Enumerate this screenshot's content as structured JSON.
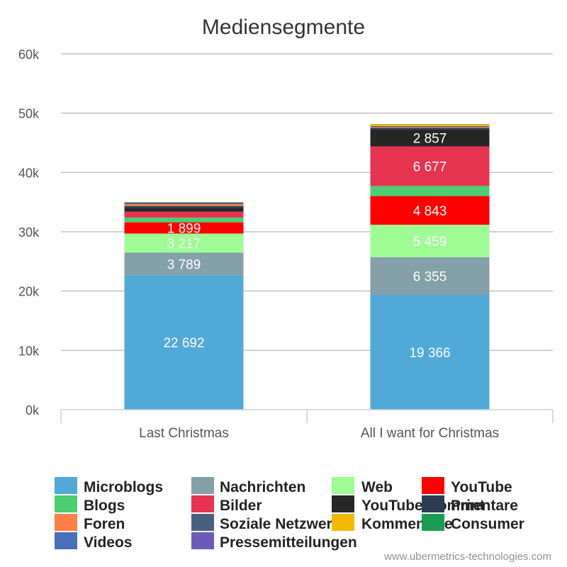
{
  "chart_data": {
    "type": "bar",
    "stacked": true,
    "title": "Mediensegmente",
    "categories": [
      "Last Christmas",
      "All I want for Christmas"
    ],
    "ylim": [
      0,
      60000
    ],
    "yticks": [
      0,
      10000,
      20000,
      30000,
      40000,
      50000,
      60000
    ],
    "ytick_labels": [
      "0k",
      "10k",
      "20k",
      "30k",
      "40k",
      "50k",
      "60k"
    ],
    "grid": true,
    "legend_position": "bottom",
    "series": [
      {
        "name": "Microblogs",
        "color": "#50a9d7",
        "values": [
          22692,
          19366
        ],
        "labels": [
          "22 692",
          "19 366"
        ]
      },
      {
        "name": "Nachrichten",
        "color": "#84a0a8",
        "values": [
          3789,
          6355
        ],
        "labels": [
          "3 789",
          "6 355"
        ]
      },
      {
        "name": "Web",
        "color": "#9efc95",
        "values": [
          3217,
          5459
        ],
        "labels": [
          "3 217",
          "5 459"
        ]
      },
      {
        "name": "YouTube",
        "color": "#ff0000",
        "values": [
          1899,
          4843
        ],
        "labels": [
          "1 899",
          "4 843"
        ]
      },
      {
        "name": "Blogs",
        "color": "#4cce72",
        "values": [
          800,
          1700
        ],
        "labels": [
          "",
          ""
        ]
      },
      {
        "name": "Bilder",
        "color": "#e6334f",
        "values": [
          1000,
          6677
        ],
        "labels": [
          "",
          "6 677"
        ]
      },
      {
        "name": "YouTube Kommentare",
        "color": "#262626",
        "values": [
          600,
          2857
        ],
        "labels": [
          "",
          "2 857"
        ]
      },
      {
        "name": "Print",
        "color": "#2b3d54",
        "values": [
          350,
          250
        ],
        "labels": [
          "",
          ""
        ]
      },
      {
        "name": "Foren",
        "color": "#ff7f45",
        "values": [
          300,
          150
        ],
        "labels": [
          "",
          ""
        ]
      },
      {
        "name": "Soziale Netzwerke",
        "color": "#476080",
        "values": [
          250,
          150
        ],
        "labels": [
          "",
          ""
        ]
      },
      {
        "name": "Kommentare",
        "color": "#f0bb00",
        "values": [
          50,
          300
        ],
        "labels": [
          "",
          ""
        ]
      },
      {
        "name": "Consumer",
        "color": "#1a9c52",
        "values": [
          30,
          30
        ],
        "labels": [
          "",
          ""
        ]
      },
      {
        "name": "Videos",
        "color": "#4a6eb8",
        "values": [
          20,
          20
        ],
        "labels": [
          "",
          ""
        ]
      },
      {
        "name": "Pressemitteilungen",
        "color": "#6a5bb8",
        "values": [
          10,
          10
        ],
        "labels": [
          "",
          ""
        ]
      }
    ]
  },
  "credit": "www.ubermetrics-technologies.com"
}
